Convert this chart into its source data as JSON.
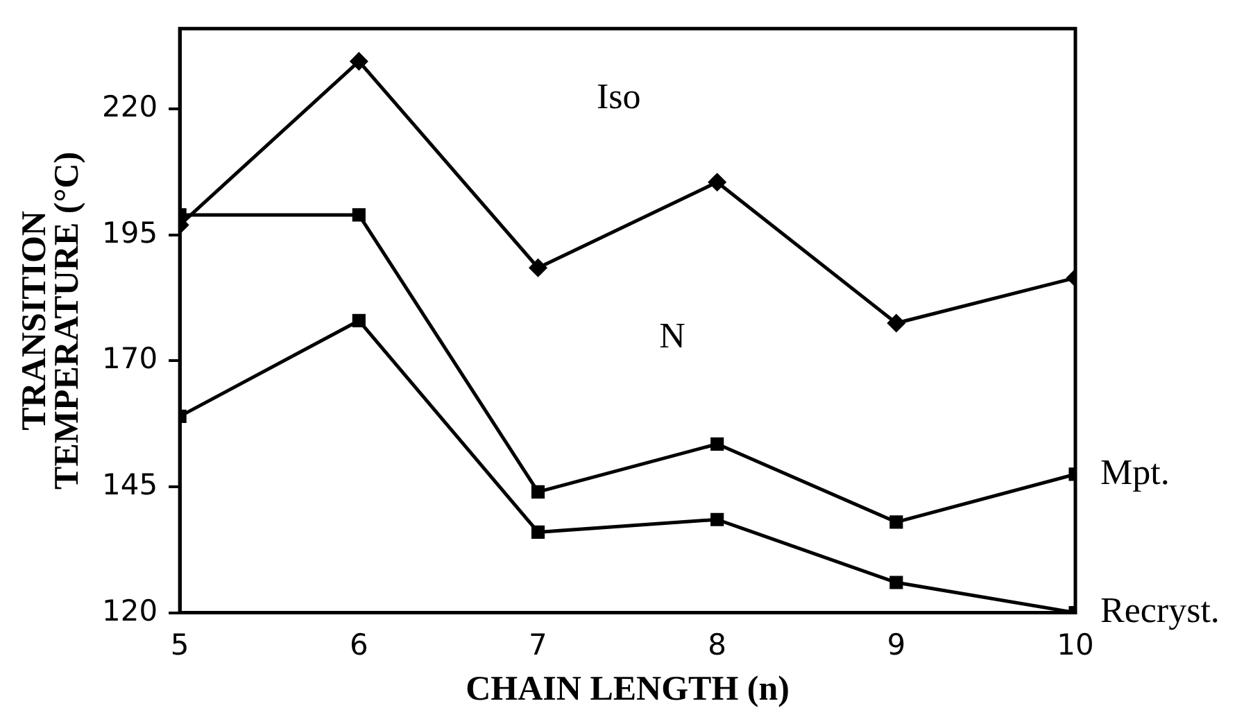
{
  "chart_data": {
    "type": "line",
    "xlabel": "CHAIN LENGTH (n)",
    "ylabel": "TRANSITION\nTEMPERATURE (°C)",
    "x": [
      5,
      6,
      7,
      8,
      9,
      10
    ],
    "series": [
      {
        "color": "#000000",
        "marker": "diamond",
        "values": [
          197,
          229.5,
          188.5,
          205.5,
          177.5,
          186.5
        ]
      },
      {
        "name": "Mpt.",
        "color": "#000000",
        "marker": "square",
        "values": [
          199,
          199,
          144,
          153.5,
          138,
          147.5
        ]
      },
      {
        "name": "Recryst.",
        "color": "#000000",
        "marker": "square",
        "values": [
          159,
          178,
          136,
          138.5,
          126,
          120
        ]
      }
    ],
    "annotations": [
      "Iso",
      "N"
    ],
    "xlim": [
      5,
      10
    ],
    "xticks": [
      5,
      6,
      7,
      8,
      9,
      10
    ],
    "ylim": [
      120,
      236
    ],
    "yticks": [
      120,
      145,
      170,
      195,
      220
    ],
    "grid": false,
    "legend": false,
    "line_style": "solid"
  }
}
